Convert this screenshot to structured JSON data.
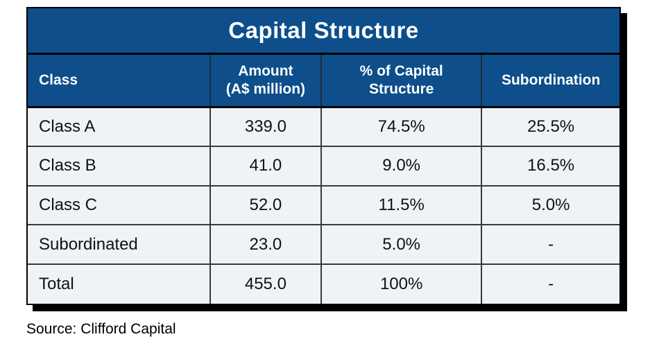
{
  "table": {
    "title": "Capital Structure",
    "columns": [
      {
        "label": "Class"
      },
      {
        "label": [
          "Amount",
          "(A$ million)"
        ]
      },
      {
        "label": [
          "% of Capital",
          "Structure"
        ]
      },
      {
        "label": "Subordination"
      }
    ],
    "rows": [
      {
        "class": "Class A",
        "amount": "339.0",
        "pct_of_capital": "74.5%",
        "subordination": "25.5%"
      },
      {
        "class": "Class B",
        "amount": "41.0",
        "pct_of_capital": "9.0%",
        "subordination": "16.5%"
      },
      {
        "class": "Class C",
        "amount": "52.0",
        "pct_of_capital": "11.5%",
        "subordination": "5.0%"
      },
      {
        "class": "Subordinated",
        "amount": "23.0",
        "pct_of_capital": "5.0%",
        "subordination": "-"
      },
      {
        "class": "Total",
        "amount": "455.0",
        "pct_of_capital": "100%",
        "subordination": "-"
      }
    ]
  },
  "source": "Source: Clifford Capital",
  "colors": {
    "header_blue": "#0d4e8b",
    "body_bg": "#eef3f8",
    "shadow": "#000000",
    "header_text": "#ffffff",
    "body_text": "#111111"
  },
  "chart_data": {
    "type": "table",
    "title": "Capital Structure",
    "columns": [
      "Class",
      "Amount (A$ million)",
      "% of Capital Structure",
      "Subordination"
    ],
    "rows": [
      [
        "Class A",
        339.0,
        "74.5%",
        "25.5%"
      ],
      [
        "Class B",
        41.0,
        "9.0%",
        "16.5%"
      ],
      [
        "Class C",
        52.0,
        "11.5%",
        "5.0%"
      ],
      [
        "Subordinated",
        23.0,
        "5.0%",
        "-"
      ],
      [
        "Total",
        455.0,
        "100%",
        "-"
      ]
    ],
    "source": "Source: Clifford Capital"
  }
}
